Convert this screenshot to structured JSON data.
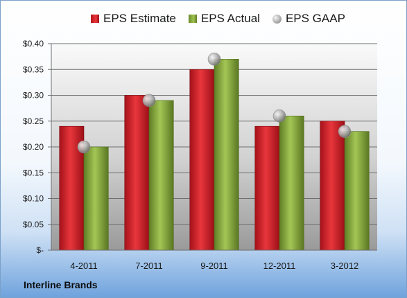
{
  "legend": {
    "estimate": "EPS Estimate",
    "actual": "EPS Actual",
    "gaap": "EPS GAAP"
  },
  "company": "Interline Brands",
  "colors": {
    "estimate": "#d61f26",
    "actual": "#8db240",
    "gaap": "#b5b5b5"
  },
  "chart_data": {
    "type": "bar",
    "categories": [
      "4-2011",
      "7-2011",
      "9-2011",
      "12-2011",
      "3-2012"
    ],
    "series": [
      {
        "name": "EPS Estimate",
        "values": [
          0.24,
          0.3,
          0.35,
          0.24,
          0.25
        ]
      },
      {
        "name": "EPS Actual",
        "values": [
          0.2,
          0.29,
          0.37,
          0.26,
          0.23
        ]
      },
      {
        "name": "EPS GAAP",
        "values": [
          0.2,
          0.29,
          0.37,
          0.26,
          0.23
        ]
      }
    ],
    "ylim": [
      0,
      0.4
    ],
    "yticks": [
      0,
      0.05,
      0.1,
      0.15,
      0.2,
      0.25,
      0.3,
      0.35,
      0.4
    ],
    "ytick_labels": [
      "$-",
      "$0.05",
      "$0.10",
      "$0.15",
      "$0.20",
      "$0.25",
      "$0.30",
      "$0.35",
      "$0.40"
    ],
    "grid": true,
    "legend_position": "top"
  }
}
